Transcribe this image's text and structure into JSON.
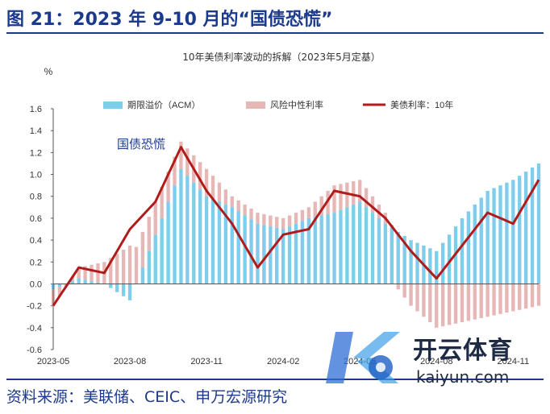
{
  "header": {
    "title": "图 21：2023 年 9-10 月的“国债恐慌”"
  },
  "footer": {
    "source": "资料来源：美联储、CEIC、申万宏源研究"
  },
  "watermark": {
    "logo_icon": "kaiyun-soccer-logo-icon",
    "cn": "开云体育",
    "en": "kaiyun.com"
  },
  "colors": {
    "term_premium": "#7ecdec",
    "neutral_rate": "#e7b7b5",
    "yield_line": "#b01c1c",
    "title_blue": "#1b3a8c"
  },
  "chart_data": {
    "type": "bar",
    "title": "10年美债利率波动的拆解（2023年5月定基）",
    "ylabel": "%",
    "ylim": [
      -0.6,
      1.6
    ],
    "yticks": [
      "1.6",
      "1.4",
      "1.2",
      "1.0",
      "0.8",
      "0.6",
      "0.4",
      "0.2",
      "0.0",
      "-0.2",
      "-0.4",
      "-0.6"
    ],
    "xticks": [
      "2023-05",
      "2023-08",
      "2023-11",
      "2024-02",
      "2024-05",
      "2024-08",
      "2024-11"
    ],
    "legend": [
      "期限溢价（ACM）",
      "风险中性利率",
      "美债利率：10年"
    ],
    "legend_position": "top",
    "annotation": "国债恐慌",
    "months": [
      "2023-05",
      "2023-06",
      "2023-07",
      "2023-08",
      "2023-09",
      "2023-10",
      "2023-11",
      "2023-12",
      "2024-01",
      "2024-02",
      "2024-03",
      "2024-04",
      "2024-05",
      "2024-06",
      "2024-07",
      "2024-08",
      "2024-09",
      "2024-10",
      "2024-11",
      "2024-12"
    ],
    "series": [
      {
        "name": "期限溢价（ACM）",
        "kind": "bar",
        "values": [
          -0.05,
          0.05,
          0.0,
          -0.15,
          0.45,
          1.05,
          0.8,
          0.7,
          0.55,
          0.5,
          0.6,
          0.65,
          0.75,
          0.55,
          0.4,
          0.3,
          0.6,
          0.85,
          0.95,
          1.1
        ]
      },
      {
        "name": "风险中性利率",
        "kind": "bar",
        "values": [
          -0.15,
          0.1,
          0.2,
          0.35,
          0.3,
          0.25,
          0.25,
          0.1,
          0.1,
          0.1,
          0.1,
          0.25,
          0.2,
          0.1,
          -0.2,
          -0.4,
          -0.35,
          -0.3,
          -0.25,
          -0.2
        ]
      },
      {
        "name": "美债利率：10年",
        "kind": "line",
        "values": [
          -0.2,
          0.15,
          0.1,
          0.5,
          0.75,
          1.25,
          0.85,
          0.55,
          0.15,
          0.45,
          0.5,
          0.85,
          0.8,
          0.6,
          0.3,
          0.05,
          0.35,
          0.65,
          0.55,
          0.95
        ]
      }
    ]
  }
}
